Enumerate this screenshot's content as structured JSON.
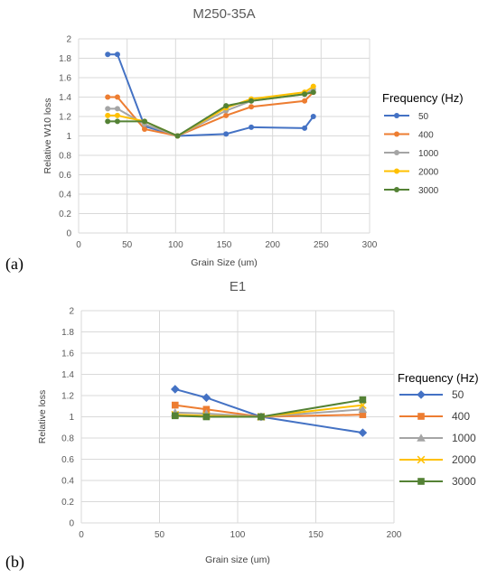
{
  "panels": [
    {
      "label": "(a)"
    },
    {
      "label": "(b)"
    }
  ],
  "chart_data": [
    {
      "type": "line",
      "title": "M250-35A",
      "xlabel": "Grain Size (um)",
      "ylabel": "Relative W10 loss",
      "xlim": [
        0,
        300
      ],
      "ylim": [
        0,
        2
      ],
      "x_ticks": [
        0,
        50,
        100,
        150,
        200,
        250,
        300
      ],
      "x_tick_labels": [
        "0",
        "50",
        "100",
        "150",
        "200",
        "250",
        "300"
      ],
      "y_ticks": [
        0,
        0.2,
        0.4,
        0.6,
        0.8,
        1,
        1.2,
        1.4,
        1.6,
        1.8,
        2
      ],
      "y_tick_labels": [
        "0",
        "0.2",
        "0.4",
        "0.6",
        "0.8",
        "1",
        "1.2",
        "1.4",
        "1.6",
        "1.8",
        "2"
      ],
      "grid": true,
      "legend_title": "Frequency (Hz)",
      "legend_position": "right",
      "series": [
        {
          "name": "50",
          "color": "#4472C4",
          "marker": "circle",
          "x": [
            30,
            40,
            68,
            102,
            152,
            178,
            233,
            242
          ],
          "y": [
            1.84,
            1.84,
            1.1,
            1.0,
            1.02,
            1.09,
            1.08,
            1.2
          ]
        },
        {
          "name": "400",
          "color": "#ED7D31",
          "marker": "circle",
          "x": [
            30,
            40,
            68,
            102,
            152,
            178,
            233,
            242
          ],
          "y": [
            1.4,
            1.4,
            1.07,
            1.0,
            1.21,
            1.3,
            1.36,
            1.45
          ]
        },
        {
          "name": "1000",
          "color": "#A5A5A5",
          "marker": "circle",
          "x": [
            30,
            40,
            68,
            102,
            152,
            178,
            233,
            242
          ],
          "y": [
            1.28,
            1.28,
            1.12,
            1.0,
            1.26,
            1.36,
            1.43,
            1.48
          ]
        },
        {
          "name": "2000",
          "color": "#FFC000",
          "marker": "circle",
          "x": [
            30,
            40,
            68,
            102,
            152,
            178,
            233,
            242
          ],
          "y": [
            1.21,
            1.21,
            1.15,
            1.0,
            1.29,
            1.38,
            1.45,
            1.51
          ]
        },
        {
          "name": "3000",
          "color": "#548235",
          "marker": "circle",
          "x": [
            30,
            40,
            68,
            102,
            152,
            178,
            233,
            242
          ],
          "y": [
            1.15,
            1.15,
            1.15,
            1.0,
            1.31,
            1.36,
            1.43,
            1.45
          ]
        }
      ]
    },
    {
      "type": "line",
      "title": "E1",
      "xlabel": "Grain size (um)",
      "ylabel": "Relative loss",
      "xlim": [
        0,
        200
      ],
      "ylim": [
        0,
        2
      ],
      "x_ticks": [
        0,
        50,
        100,
        150,
        200
      ],
      "x_tick_labels": [
        "0",
        "50",
        "100",
        "150",
        "200"
      ],
      "y_ticks": [
        0,
        0.2,
        0.4,
        0.6,
        0.8,
        1,
        1.2,
        1.4,
        1.6,
        1.8,
        2
      ],
      "y_tick_labels": [
        "0",
        "0.2",
        "0.4",
        "0.6",
        "0.8",
        "1",
        "1.2",
        "1.4",
        "1.6",
        "1.8",
        "2"
      ],
      "grid": true,
      "legend_title": "Frequency (Hz)",
      "legend_position": "right",
      "series": [
        {
          "name": "50",
          "color": "#4472C4",
          "marker": "diamond",
          "x": [
            60,
            80,
            115,
            180
          ],
          "y": [
            1.26,
            1.18,
            1.0,
            0.85
          ]
        },
        {
          "name": "400",
          "color": "#ED7D31",
          "marker": "square",
          "x": [
            60,
            80,
            115,
            180
          ],
          "y": [
            1.11,
            1.07,
            1.0,
            1.02
          ]
        },
        {
          "name": "1000",
          "color": "#A5A5A5",
          "marker": "triangle",
          "x": [
            60,
            80,
            115,
            180
          ],
          "y": [
            1.04,
            1.03,
            1.0,
            1.07
          ]
        },
        {
          "name": "2000",
          "color": "#FFC000",
          "marker": "x",
          "x": [
            60,
            80,
            115,
            180
          ],
          "y": [
            1.02,
            1.01,
            1.0,
            1.11
          ]
        },
        {
          "name": "3000",
          "color": "#548235",
          "marker": "square",
          "x": [
            60,
            80,
            115,
            180
          ],
          "y": [
            1.01,
            1.0,
            1.0,
            1.16
          ]
        }
      ]
    }
  ]
}
